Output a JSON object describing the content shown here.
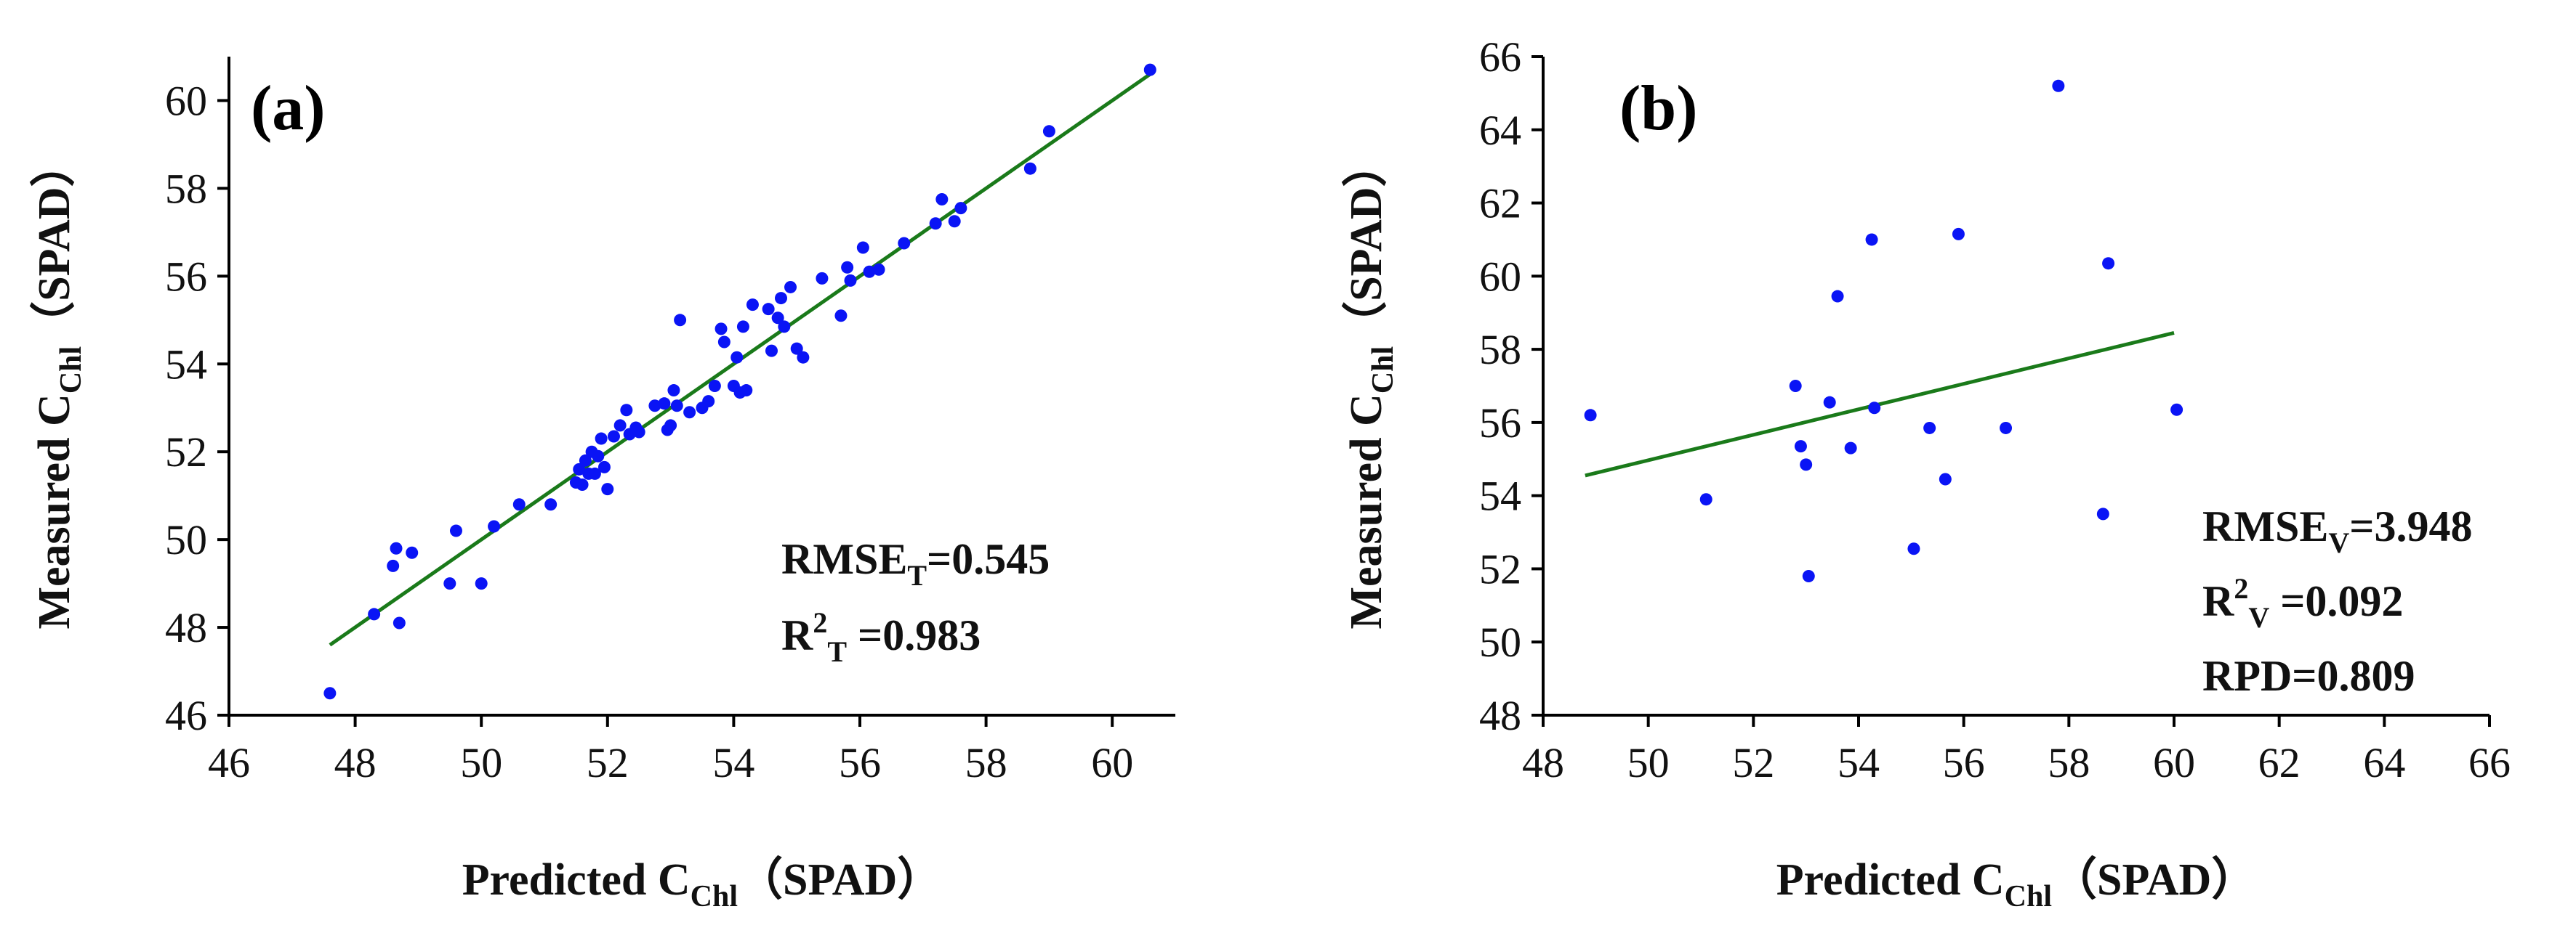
{
  "chart_data": [
    {
      "type": "scatter",
      "panel_label": "(a)",
      "xlabel": {
        "main": "Predicted C",
        "sub": "Chl",
        "tail": "（SPAD）"
      },
      "ylabel": {
        "main": "Measured  C",
        "sub": "Chl",
        "tail": "（SPAD）"
      },
      "xlim": [
        46,
        61
      ],
      "ylim": [
        46,
        61
      ],
      "xticks": [
        46,
        48,
        50,
        52,
        54,
        56,
        58,
        60
      ],
      "yticks": [
        46,
        48,
        50,
        52,
        54,
        56,
        58,
        60
      ],
      "colors": {
        "points": "#0a14f5",
        "line": "#1a7a1a"
      },
      "fit_line": {
        "x": [
          47.6,
          60.6
        ],
        "y": [
          47.6,
          60.6
        ]
      },
      "annotations": [
        {
          "main": "RMSE",
          "sub": "T",
          "tail": "=0.545"
        },
        {
          "main": "R",
          "sup": "2",
          "sub": "T",
          "tail": " =0.983"
        }
      ],
      "points": [
        [
          47.6,
          46.5
        ],
        [
          48.3,
          48.3
        ],
        [
          48.6,
          49.4
        ],
        [
          48.65,
          49.8
        ],
        [
          48.7,
          48.1
        ],
        [
          48.9,
          49.7
        ],
        [
          49.5,
          49.0
        ],
        [
          49.6,
          50.2
        ],
        [
          50.0,
          49.0
        ],
        [
          50.2,
          50.3
        ],
        [
          50.6,
          50.8
        ],
        [
          51.1,
          50.8
        ],
        [
          51.5,
          51.3
        ],
        [
          51.55,
          51.6
        ],
        [
          51.6,
          51.25
        ],
        [
          51.65,
          51.8
        ],
        [
          51.7,
          51.5
        ],
        [
          51.75,
          52.0
        ],
        [
          51.8,
          51.5
        ],
        [
          51.85,
          51.9
        ],
        [
          51.9,
          52.3
        ],
        [
          51.95,
          51.65
        ],
        [
          52.0,
          51.15
        ],
        [
          52.1,
          52.35
        ],
        [
          52.2,
          52.6
        ],
        [
          52.3,
          52.95
        ],
        [
          52.35,
          52.4
        ],
        [
          52.45,
          52.55
        ],
        [
          52.5,
          52.45
        ],
        [
          52.75,
          53.05
        ],
        [
          52.9,
          53.1
        ],
        [
          52.95,
          52.5
        ],
        [
          53.0,
          52.6
        ],
        [
          53.05,
          53.4
        ],
        [
          53.1,
          53.05
        ],
        [
          53.15,
          55.0
        ],
        [
          53.3,
          52.9
        ],
        [
          53.5,
          53.0
        ],
        [
          53.6,
          53.15
        ],
        [
          53.7,
          53.5
        ],
        [
          53.8,
          54.8
        ],
        [
          53.85,
          54.5
        ],
        [
          54.0,
          53.5
        ],
        [
          54.05,
          54.15
        ],
        [
          54.1,
          53.35
        ],
        [
          54.15,
          54.85
        ],
        [
          54.2,
          53.4
        ],
        [
          54.3,
          55.35
        ],
        [
          54.55,
          55.25
        ],
        [
          54.6,
          54.3
        ],
        [
          54.7,
          55.05
        ],
        [
          54.75,
          55.5
        ],
        [
          54.8,
          54.85
        ],
        [
          54.9,
          55.75
        ],
        [
          55.0,
          54.35
        ],
        [
          55.1,
          54.15
        ],
        [
          55.4,
          55.95
        ],
        [
          55.7,
          55.1
        ],
        [
          55.8,
          56.2
        ],
        [
          55.85,
          55.9
        ],
        [
          56.05,
          56.65
        ],
        [
          56.15,
          56.1
        ],
        [
          56.3,
          56.15
        ],
        [
          56.7,
          56.75
        ],
        [
          57.2,
          57.2
        ],
        [
          57.3,
          57.75
        ],
        [
          57.5,
          57.25
        ],
        [
          57.6,
          57.55
        ],
        [
          58.7,
          58.45
        ],
        [
          59.0,
          59.3
        ],
        [
          60.6,
          60.7
        ]
      ]
    },
    {
      "type": "scatter",
      "panel_label": "(b)",
      "xlabel": {
        "main": "Predicted C",
        "sub": "Chl",
        "tail": "（SPAD）"
      },
      "ylabel": {
        "main": "Measured  C",
        "sub": "Chl",
        "tail": "（SPAD）"
      },
      "xlim": [
        48,
        66
      ],
      "ylim": [
        48,
        66
      ],
      "xticks": [
        48,
        50,
        52,
        54,
        56,
        58,
        60,
        62,
        64,
        66
      ],
      "yticks": [
        48,
        50,
        52,
        54,
        56,
        58,
        60,
        62,
        64,
        66
      ],
      "colors": {
        "points": "#0a14f5",
        "line": "#1a7a1a"
      },
      "fit_line": {
        "x": [
          48.8,
          60.0
        ],
        "y": [
          54.55,
          58.45
        ]
      },
      "annotations": [
        {
          "main": "RMSE",
          "sub": "V",
          "tail": "=3.948"
        },
        {
          "main": "R",
          "sup": "2",
          "sub": "V",
          "tail": " =0.092"
        },
        {
          "main": "RPD=0.809"
        }
      ],
      "points": [
        [
          48.9,
          56.2
        ],
        [
          51.1,
          53.9
        ],
        [
          52.8,
          57.0
        ],
        [
          52.9,
          55.35
        ],
        [
          53.0,
          54.85
        ],
        [
          53.05,
          51.8
        ],
        [
          53.45,
          56.55
        ],
        [
          53.6,
          59.45
        ],
        [
          53.85,
          55.3
        ],
        [
          54.25,
          61.0
        ],
        [
          54.3,
          56.4
        ],
        [
          55.05,
          52.55
        ],
        [
          55.35,
          55.85
        ],
        [
          55.65,
          54.45
        ],
        [
          55.9,
          61.15
        ],
        [
          56.8,
          55.85
        ],
        [
          57.8,
          65.2
        ],
        [
          58.65,
          53.5
        ],
        [
          58.75,
          60.35
        ],
        [
          60.05,
          56.35
        ]
      ]
    }
  ]
}
